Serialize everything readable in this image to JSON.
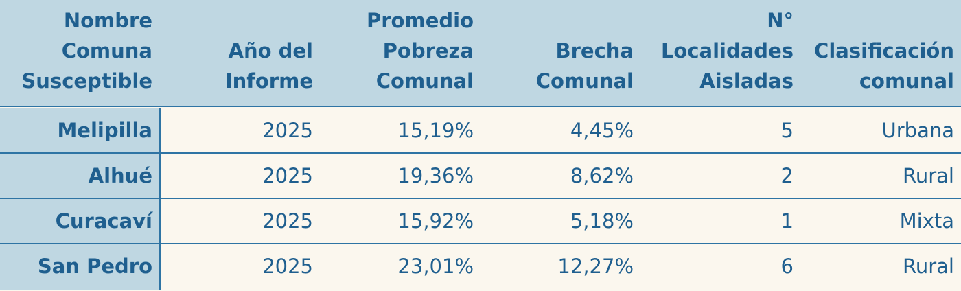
{
  "headers": [
    "Nombre\nComuna\nSusceptible",
    "Año del\nInforme",
    "Promedio\nPobreza\nComunal",
    "Brecha\nComunal",
    "N°\nLocalidades\nAisladas",
    "Clasificación\ncomunal"
  ],
  "rows": [
    [
      "Melipilla",
      "2025",
      "15,19%",
      "4,45%",
      "5",
      "Urbana"
    ],
    [
      "Alhué",
      "2025",
      "19,36%",
      "8,62%",
      "2",
      "Rural"
    ],
    [
      "Curacaví",
      "2025",
      "15,92%",
      "5,18%",
      "1",
      "Mixta"
    ],
    [
      "San Pedro",
      "2025",
      "23,01%",
      "12,27%",
      "6",
      "Rural"
    ]
  ]
}
